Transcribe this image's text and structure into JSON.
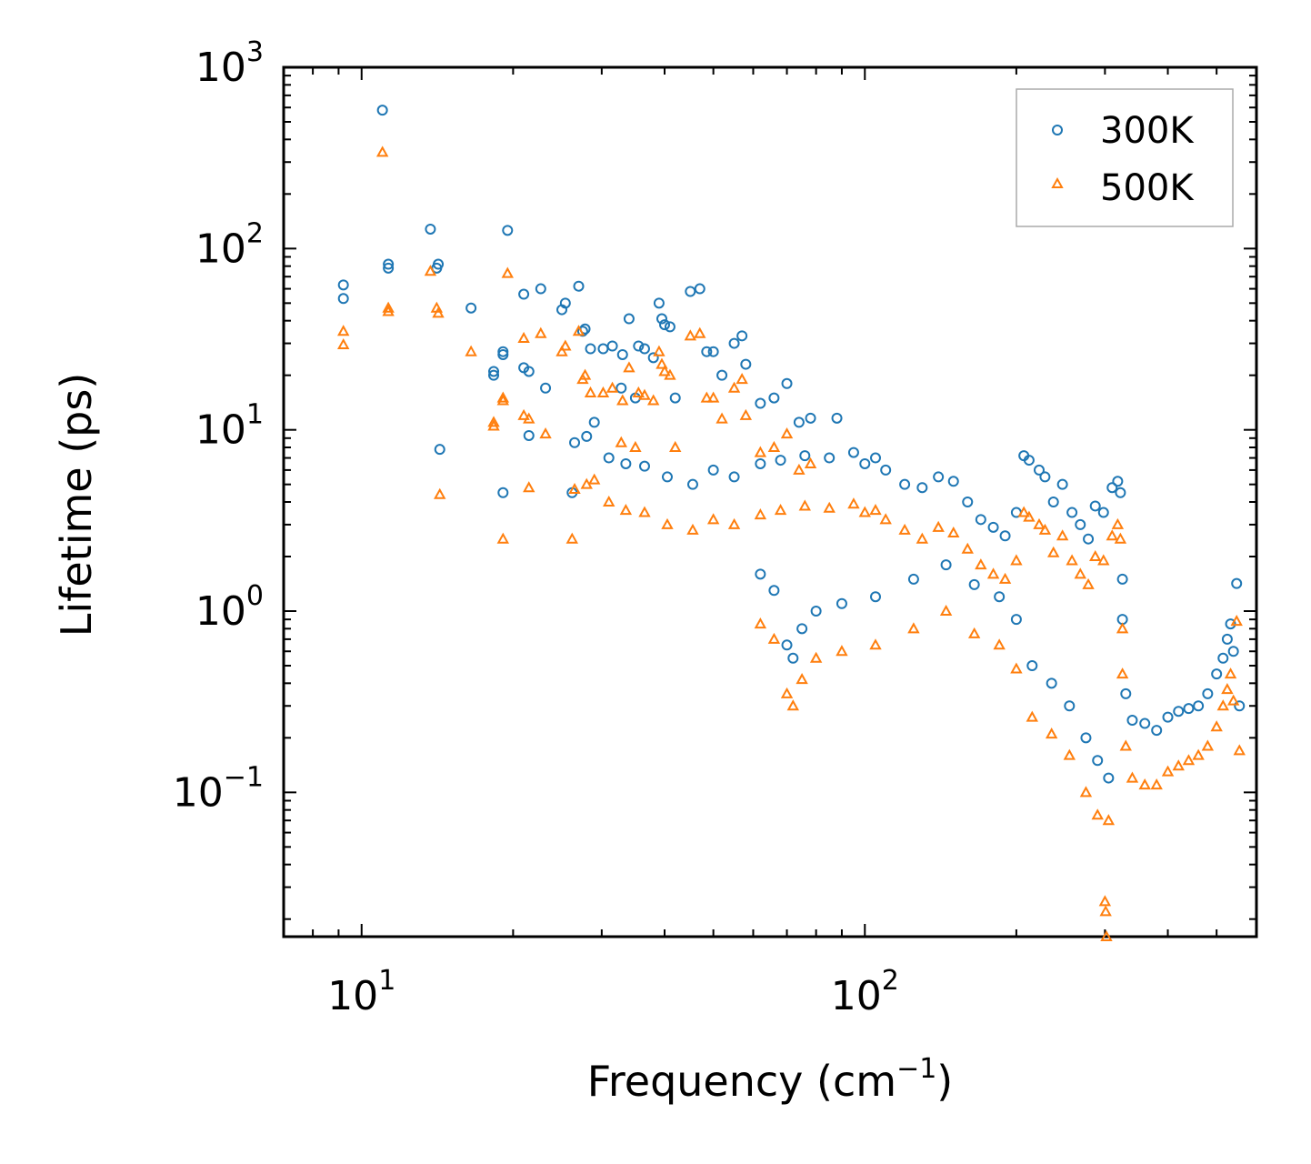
{
  "chart_data": {
    "type": "scatter",
    "xscale": "log",
    "yscale": "log",
    "xlim": [
      7.0,
      600.0
    ],
    "ylim": [
      0.016,
      1000
    ],
    "xlabel": {
      "base": "Frequency (cm",
      "sup": "−1",
      "tail": ")"
    },
    "ylabel": "Lifetime (ps)",
    "xticks": [
      {
        "value": 10,
        "base": "10",
        "exp": "1"
      },
      {
        "value": 100,
        "base": "10",
        "exp": "2"
      }
    ],
    "yticks": [
      {
        "value": 0.1,
        "base": "10",
        "exp": "−1"
      },
      {
        "value": 1,
        "base": "10",
        "exp": "0"
      },
      {
        "value": 10,
        "base": "10",
        "exp": "1"
      },
      {
        "value": 100,
        "base": "10",
        "exp": "2"
      },
      {
        "value": 1000,
        "base": "10",
        "exp": "3"
      }
    ],
    "legend": {
      "position": "top-right"
    },
    "series": [
      {
        "name": "300K",
        "marker": "circle",
        "color": "#1f77b4",
        "points": [
          [
            9.2,
            63
          ],
          [
            9.2,
            53
          ],
          [
            11.0,
            580
          ],
          [
            11.3,
            82
          ],
          [
            11.3,
            78
          ],
          [
            13.7,
            128
          ],
          [
            14.1,
            78
          ],
          [
            14.2,
            82
          ],
          [
            14.3,
            7.8
          ],
          [
            16.5,
            47
          ],
          [
            18.3,
            20
          ],
          [
            18.3,
            21
          ],
          [
            19.1,
            27
          ],
          [
            19.1,
            26
          ],
          [
            19.1,
            4.5
          ],
          [
            19.5,
            126
          ],
          [
            21.0,
            56
          ],
          [
            21.0,
            22
          ],
          [
            21.5,
            21
          ],
          [
            21.5,
            9.3
          ],
          [
            22.7,
            60
          ],
          [
            23.2,
            17
          ],
          [
            25.0,
            46
          ],
          [
            25.4,
            50
          ],
          [
            26.2,
            4.5
          ],
          [
            27.0,
            62
          ],
          [
            27.5,
            35
          ],
          [
            27.8,
            36
          ],
          [
            28.5,
            28
          ],
          [
            29.0,
            11
          ],
          [
            30.2,
            28
          ],
          [
            31.5,
            29
          ],
          [
            32.8,
            17
          ],
          [
            33.0,
            26
          ],
          [
            34.0,
            41
          ],
          [
            35.0,
            15
          ],
          [
            35.5,
            29
          ],
          [
            36.5,
            28
          ],
          [
            38.0,
            25
          ],
          [
            39.0,
            50
          ],
          [
            39.5,
            41
          ],
          [
            40.0,
            38
          ],
          [
            41.0,
            37
          ],
          [
            42.0,
            15
          ],
          [
            45.0,
            58
          ],
          [
            47.0,
            60
          ],
          [
            48.5,
            27
          ],
          [
            50.0,
            27
          ],
          [
            52.0,
            20
          ],
          [
            55.0,
            30
          ],
          [
            57.0,
            33
          ],
          [
            58.0,
            23
          ],
          [
            62.0,
            14
          ],
          [
            66.0,
            15
          ],
          [
            70.0,
            18
          ],
          [
            74.0,
            11
          ],
          [
            78.0,
            11.6
          ],
          [
            88.0,
            11.6
          ],
          [
            26.5,
            8.5
          ],
          [
            28.0,
            9.2
          ],
          [
            31.0,
            7.0
          ],
          [
            33.5,
            6.5
          ],
          [
            36.5,
            6.3
          ],
          [
            40.5,
            5.5
          ],
          [
            45.5,
            5.0
          ],
          [
            50.0,
            6.0
          ],
          [
            55.0,
            5.5
          ],
          [
            62.0,
            6.5
          ],
          [
            68.0,
            6.8
          ],
          [
            76.0,
            7.2
          ],
          [
            85.0,
            7.0
          ],
          [
            95.0,
            7.5
          ],
          [
            100.0,
            6.5
          ],
          [
            105.0,
            7.0
          ],
          [
            110.0,
            6.0
          ],
          [
            120.0,
            5.0
          ],
          [
            130.0,
            4.8
          ],
          [
            140.0,
            5.5
          ],
          [
            150.0,
            5.2
          ],
          [
            160.0,
            4.0
          ],
          [
            170.0,
            3.2
          ],
          [
            180.0,
            2.9
          ],
          [
            190.0,
            2.6
          ],
          [
            200.0,
            3.5
          ],
          [
            207.0,
            7.2
          ],
          [
            212.0,
            6.8
          ],
          [
            222.0,
            6.0
          ],
          [
            228.0,
            5.5
          ],
          [
            237.0,
            4.0
          ],
          [
            247.0,
            5.0
          ],
          [
            258.0,
            3.5
          ],
          [
            268.0,
            3.0
          ],
          [
            278.0,
            2.5
          ],
          [
            287.0,
            3.8
          ],
          [
            298.0,
            3.5
          ],
          [
            310.0,
            4.8
          ],
          [
            318.0,
            5.2
          ],
          [
            322.0,
            4.5
          ],
          [
            325.0,
            1.5
          ],
          [
            325.0,
            0.9
          ],
          [
            330.0,
            0.35
          ],
          [
            340.0,
            0.25
          ],
          [
            360.0,
            0.24
          ],
          [
            380.0,
            0.22
          ],
          [
            400.0,
            0.26
          ],
          [
            420.0,
            0.28
          ],
          [
            440.0,
            0.29
          ],
          [
            460.0,
            0.3
          ],
          [
            480.0,
            0.35
          ],
          [
            500.0,
            0.45
          ],
          [
            515.0,
            0.55
          ],
          [
            525.0,
            0.7
          ],
          [
            533.0,
            0.85
          ],
          [
            540.0,
            0.6
          ],
          [
            548.0,
            1.42
          ],
          [
            555.0,
            0.3
          ],
          [
            62.0,
            1.6
          ],
          [
            66.0,
            1.3
          ],
          [
            70.0,
            0.65
          ],
          [
            72.0,
            0.55
          ],
          [
            75.0,
            0.8
          ],
          [
            80.0,
            1.0
          ],
          [
            90.0,
            1.1
          ],
          [
            105.0,
            1.2
          ],
          [
            125.0,
            1.5
          ],
          [
            145.0,
            1.8
          ],
          [
            165.0,
            1.4
          ],
          [
            185.0,
            1.2
          ],
          [
            200.0,
            0.9
          ],
          [
            215.0,
            0.5
          ],
          [
            235.0,
            0.4
          ],
          [
            255.0,
            0.3
          ],
          [
            275.0,
            0.2
          ],
          [
            290.0,
            0.15
          ],
          [
            305.0,
            0.12
          ]
        ]
      },
      {
        "name": "500K",
        "marker": "triangle",
        "color": "#ff7f0e",
        "points": [
          [
            9.2,
            35
          ],
          [
            9.2,
            29.5
          ],
          [
            11.0,
            340
          ],
          [
            11.3,
            47
          ],
          [
            11.3,
            45
          ],
          [
            13.7,
            75
          ],
          [
            14.1,
            47
          ],
          [
            14.2,
            44
          ],
          [
            14.3,
            4.4
          ],
          [
            16.5,
            27
          ],
          [
            18.3,
            10.5
          ],
          [
            18.3,
            11
          ],
          [
            19.1,
            15
          ],
          [
            19.1,
            14.5
          ],
          [
            19.1,
            2.5
          ],
          [
            19.5,
            73
          ],
          [
            21.0,
            32
          ],
          [
            21.0,
            12
          ],
          [
            21.5,
            11.5
          ],
          [
            21.5,
            4.8
          ],
          [
            22.7,
            34
          ],
          [
            23.2,
            9.5
          ],
          [
            25.0,
            27
          ],
          [
            25.4,
            29
          ],
          [
            26.2,
            2.5
          ],
          [
            27.0,
            35
          ],
          [
            27.5,
            19
          ],
          [
            27.8,
            20
          ],
          [
            28.5,
            16
          ],
          [
            29.0,
            5.3
          ],
          [
            30.2,
            16
          ],
          [
            31.5,
            17
          ],
          [
            32.8,
            8.5
          ],
          [
            33.0,
            14.5
          ],
          [
            34.0,
            22
          ],
          [
            35.0,
            8.0
          ],
          [
            35.5,
            16
          ],
          [
            36.5,
            15.5
          ],
          [
            38.0,
            14.5
          ],
          [
            39.0,
            27
          ],
          [
            39.5,
            23
          ],
          [
            40.0,
            21
          ],
          [
            41.0,
            20
          ],
          [
            42.0,
            8.0
          ],
          [
            45.0,
            33
          ],
          [
            47.0,
            34
          ],
          [
            48.5,
            15
          ],
          [
            50.0,
            15
          ],
          [
            52.0,
            11.5
          ],
          [
            55.0,
            17
          ],
          [
            57.0,
            19
          ],
          [
            58.0,
            12
          ],
          [
            62.0,
            7.5
          ],
          [
            66.0,
            8.0
          ],
          [
            70.0,
            9.5
          ],
          [
            74.0,
            6.0
          ],
          [
            78.0,
            6.5
          ],
          [
            26.5,
            4.7
          ],
          [
            28.0,
            5.0
          ],
          [
            31.0,
            4.0
          ],
          [
            33.5,
            3.6
          ],
          [
            36.5,
            3.5
          ],
          [
            40.5,
            3.0
          ],
          [
            45.5,
            2.8
          ],
          [
            50.0,
            3.2
          ],
          [
            55.0,
            3.0
          ],
          [
            62.0,
            3.4
          ],
          [
            68.0,
            3.6
          ],
          [
            76.0,
            3.8
          ],
          [
            85.0,
            3.7
          ],
          [
            95.0,
            3.9
          ],
          [
            100.0,
            3.5
          ],
          [
            105.0,
            3.6
          ],
          [
            110.0,
            3.2
          ],
          [
            120.0,
            2.8
          ],
          [
            130.0,
            2.5
          ],
          [
            140.0,
            2.9
          ],
          [
            150.0,
            2.7
          ],
          [
            160.0,
            2.2
          ],
          [
            170.0,
            1.8
          ],
          [
            180.0,
            1.6
          ],
          [
            190.0,
            1.5
          ],
          [
            200.0,
            1.9
          ],
          [
            207.0,
            3.5
          ],
          [
            212.0,
            3.3
          ],
          [
            222.0,
            3.0
          ],
          [
            228.0,
            2.8
          ],
          [
            237.0,
            2.1
          ],
          [
            247.0,
            2.6
          ],
          [
            258.0,
            1.9
          ],
          [
            268.0,
            1.6
          ],
          [
            278.0,
            1.4
          ],
          [
            287.0,
            2.0
          ],
          [
            298.0,
            1.9
          ],
          [
            310.0,
            2.6
          ],
          [
            318.0,
            3.0
          ],
          [
            322.0,
            2.5
          ],
          [
            325.0,
            0.8
          ],
          [
            325.0,
            0.45
          ],
          [
            330.0,
            0.18
          ],
          [
            340.0,
            0.12
          ],
          [
            360.0,
            0.11
          ],
          [
            380.0,
            0.11
          ],
          [
            400.0,
            0.13
          ],
          [
            420.0,
            0.14
          ],
          [
            440.0,
            0.15
          ],
          [
            460.0,
            0.16
          ],
          [
            480.0,
            0.18
          ],
          [
            500.0,
            0.23
          ],
          [
            515.0,
            0.3
          ],
          [
            525.0,
            0.37
          ],
          [
            533.0,
            0.45
          ],
          [
            540.0,
            0.32
          ],
          [
            548.0,
            0.88
          ],
          [
            555.0,
            0.17
          ],
          [
            62.0,
            0.85
          ],
          [
            66.0,
            0.7
          ],
          [
            70.0,
            0.35
          ],
          [
            72.0,
            0.3
          ],
          [
            75.0,
            0.42
          ],
          [
            80.0,
            0.55
          ],
          [
            90.0,
            0.6
          ],
          [
            105.0,
            0.65
          ],
          [
            125.0,
            0.8
          ],
          [
            145.0,
            1.0
          ],
          [
            165.0,
            0.75
          ],
          [
            185.0,
            0.65
          ],
          [
            200.0,
            0.48
          ],
          [
            215.0,
            0.26
          ],
          [
            235.0,
            0.21
          ],
          [
            255.0,
            0.16
          ],
          [
            275.0,
            0.1
          ],
          [
            290.0,
            0.075
          ],
          [
            305.0,
            0.07
          ],
          [
            300.0,
            0.025
          ],
          [
            301.0,
            0.022
          ],
          [
            302.0,
            0.016
          ]
        ]
      }
    ]
  }
}
